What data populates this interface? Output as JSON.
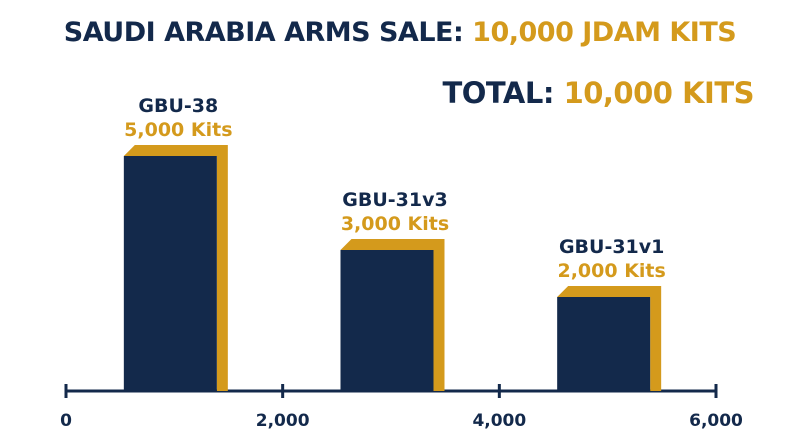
{
  "header": {
    "title_prefix": "SAUDI ARABIA ARMS SALE: ",
    "title_highlight": "10,000 JDAM KITS",
    "total_prefix": "TOTAL: ",
    "total_highlight": "10,000 KITS"
  },
  "colors": {
    "navy": "#13294b",
    "gold": "#d49a1c"
  },
  "chart_data": {
    "type": "bar",
    "categories": [
      "GBU-38",
      "GBU-31v3",
      "GBU-31v1"
    ],
    "values": [
      5000,
      3000,
      2000
    ],
    "value_labels": [
      "5,000 Kits",
      "3,000 Kits",
      "2,000 Kits"
    ],
    "title": "SAUDI ARABIA ARMS SALE: 10,000 JDAM KITS",
    "xlabel": "",
    "ylabel": "",
    "x_ticks": [
      0,
      2000,
      4000,
      6000
    ],
    "x_tick_labels": [
      "0",
      "2,000",
      "4,000",
      "6,000"
    ],
    "xlim": [
      0,
      6000
    ],
    "ylim": [
      0,
      5000
    ],
    "grid": false,
    "legend": "none"
  }
}
